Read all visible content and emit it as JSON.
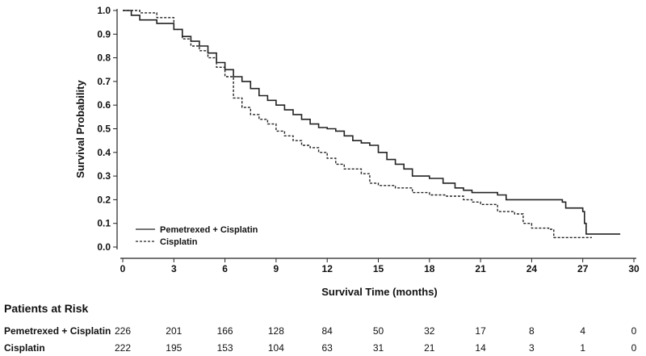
{
  "chart_data": {
    "type": "line",
    "title": "",
    "xlabel": "Survival Time (months)",
    "ylabel": "Survival Probability",
    "xlim": [
      0,
      30
    ],
    "ylim": [
      0,
      1.0
    ],
    "x_ticks": [
      "0",
      "3",
      "6",
      "9",
      "12",
      "15",
      "18",
      "21",
      "24",
      "27",
      "30"
    ],
    "y_ticks": [
      "0.0",
      "0.1",
      "0.2",
      "0.3",
      "0.4",
      "0.5",
      "0.6",
      "0.7",
      "0.8",
      "0.9",
      "1.0"
    ],
    "grid": false,
    "legend": "lower-left",
    "series": [
      {
        "name": "Pemetrexed + Cisplatin",
        "style": "solid",
        "color": "#222222",
        "points": [
          [
            0,
            1.0
          ],
          [
            0.5,
            0.98
          ],
          [
            1,
            0.96
          ],
          [
            2,
            0.945
          ],
          [
            3,
            0.92
          ],
          [
            3.5,
            0.89
          ],
          [
            4,
            0.87
          ],
          [
            4.5,
            0.85
          ],
          [
            5,
            0.82
          ],
          [
            5.5,
            0.78
          ],
          [
            6,
            0.75
          ],
          [
            6.5,
            0.72
          ],
          [
            7,
            0.7
          ],
          [
            7.5,
            0.67
          ],
          [
            8,
            0.64
          ],
          [
            8.5,
            0.62
          ],
          [
            9,
            0.6
          ],
          [
            9.5,
            0.58
          ],
          [
            10,
            0.56
          ],
          [
            10.5,
            0.54
          ],
          [
            11,
            0.52
          ],
          [
            11.5,
            0.505
          ],
          [
            12,
            0.5
          ],
          [
            12.5,
            0.49
          ],
          [
            13,
            0.47
          ],
          [
            13.5,
            0.45
          ],
          [
            14,
            0.44
          ],
          [
            14.5,
            0.43
          ],
          [
            15,
            0.4
          ],
          [
            15.5,
            0.37
          ],
          [
            16,
            0.35
          ],
          [
            16.5,
            0.33
          ],
          [
            17,
            0.3
          ],
          [
            18,
            0.29
          ],
          [
            18.8,
            0.27
          ],
          [
            19.5,
            0.25
          ],
          [
            20,
            0.24
          ],
          [
            20.5,
            0.23
          ],
          [
            22,
            0.22
          ],
          [
            22.5,
            0.2
          ],
          [
            25.8,
            0.19
          ],
          [
            26,
            0.165
          ],
          [
            26.8,
            0.165
          ],
          [
            27,
            0.15
          ],
          [
            27.1,
            0.1
          ],
          [
            27.2,
            0.055
          ],
          [
            29.2,
            0.055
          ]
        ]
      },
      {
        "name": "Cisplatin",
        "style": "dashed",
        "color": "#222222",
        "points": [
          [
            0,
            1.0
          ],
          [
            1,
            0.99
          ],
          [
            2,
            0.97
          ],
          [
            3,
            0.92
          ],
          [
            3.5,
            0.88
          ],
          [
            4,
            0.85
          ],
          [
            4.5,
            0.83
          ],
          [
            5,
            0.8
          ],
          [
            5.5,
            0.76
          ],
          [
            6,
            0.72
          ],
          [
            6.5,
            0.63
          ],
          [
            7,
            0.59
          ],
          [
            7.5,
            0.56
          ],
          [
            8,
            0.54
          ],
          [
            8.5,
            0.52
          ],
          [
            9,
            0.49
          ],
          [
            9.5,
            0.47
          ],
          [
            10,
            0.45
          ],
          [
            10.5,
            0.43
          ],
          [
            11,
            0.42
          ],
          [
            11.5,
            0.4
          ],
          [
            12,
            0.375
          ],
          [
            12.5,
            0.35
          ],
          [
            13,
            0.33
          ],
          [
            14,
            0.31
          ],
          [
            14.5,
            0.27
          ],
          [
            15,
            0.26
          ],
          [
            16,
            0.25
          ],
          [
            17,
            0.23
          ],
          [
            18,
            0.22
          ],
          [
            19,
            0.215
          ],
          [
            20,
            0.2
          ],
          [
            20.5,
            0.19
          ],
          [
            21,
            0.18
          ],
          [
            22,
            0.15
          ],
          [
            23,
            0.14
          ],
          [
            23.5,
            0.1
          ],
          [
            24,
            0.08
          ],
          [
            25,
            0.075
          ],
          [
            25.3,
            0.04
          ],
          [
            27.5,
            0.038
          ]
        ]
      }
    ]
  },
  "risk_table": {
    "title": "Patients at Risk",
    "times": [
      0,
      3,
      6,
      9,
      12,
      15,
      18,
      21,
      24,
      27,
      30
    ],
    "rows": [
      {
        "label": "Pemetrexed + Cisplatin",
        "values": [
          "226",
          "201",
          "166",
          "128",
          "84",
          "50",
          "32",
          "17",
          "8",
          "4",
          "0"
        ]
      },
      {
        "label": "Cisplatin",
        "values": [
          "222",
          "195",
          "153",
          "104",
          "63",
          "31",
          "21",
          "14",
          "3",
          "1",
          "0"
        ]
      }
    ]
  }
}
